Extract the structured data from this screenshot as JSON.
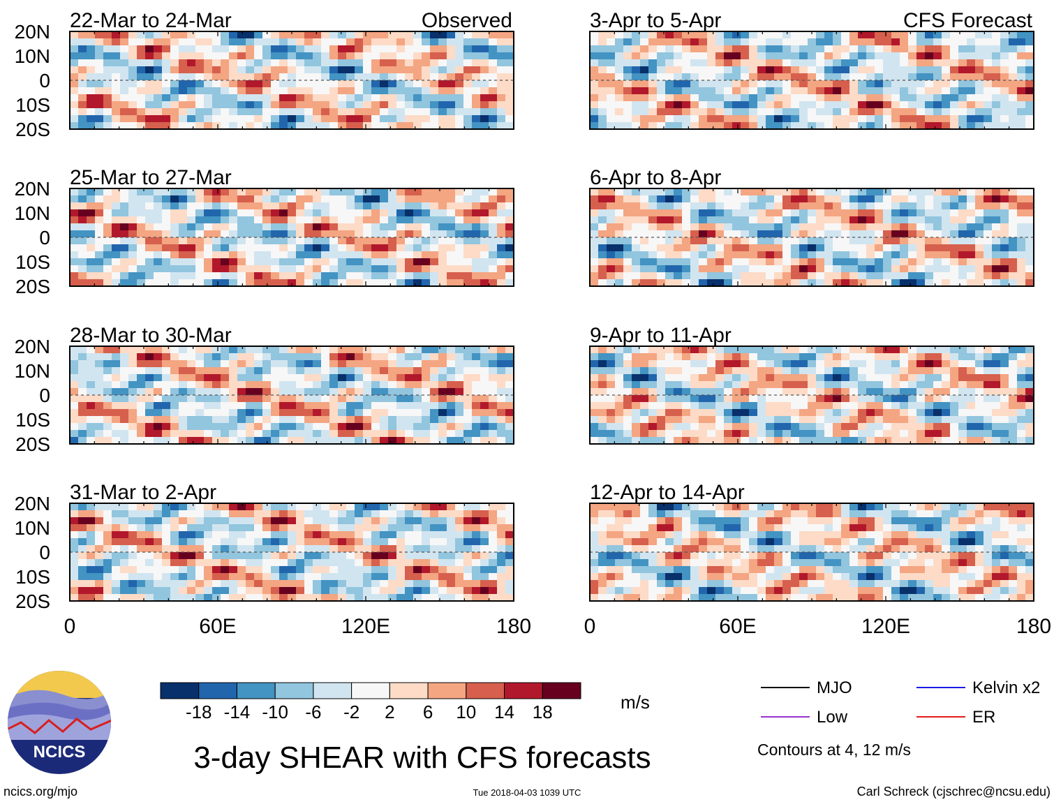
{
  "chart_data": {
    "type": "heatmap",
    "title": "3-day SHEAR with CFS forecasts",
    "units": "m/s",
    "columns": [
      {
        "header": "Observed",
        "panels": [
          "22-Mar to 24-Mar",
          "25-Mar to 27-Mar",
          "28-Mar to 30-Mar",
          "31-Mar to 2-Apr"
        ]
      },
      {
        "header": "CFS Forecast",
        "panels": [
          "3-Apr to 5-Apr",
          "6-Apr to 8-Apr",
          "9-Apr to 11-Apr",
          "12-Apr to 14-Apr"
        ]
      }
    ],
    "x_ticks": [
      "0",
      "60E",
      "120E",
      "180"
    ],
    "x_values": [
      0,
      60,
      120,
      180
    ],
    "xlim": [
      0,
      180
    ],
    "y_ticks": [
      "20N",
      "10N",
      "0",
      "10S",
      "20S"
    ],
    "y_values": [
      20,
      10,
      0,
      -10,
      -20
    ],
    "ylim": [
      -20,
      20
    ],
    "colorbar": {
      "labels": [
        "-18",
        "-14",
        "-10",
        "-6",
        "-2",
        "2",
        "6",
        "10",
        "14",
        "18"
      ],
      "colors": [
        "#08306b",
        "#2166ac",
        "#4393c3",
        "#92c5de",
        "#d1e5f0",
        "#f7f7f7",
        "#fddbc7",
        "#f4a582",
        "#d6604d",
        "#b2182b",
        "#67001f"
      ]
    },
    "legend": [
      {
        "label": "MJO",
        "color": "#000000"
      },
      {
        "label": "Kelvin x2",
        "color": "#1a1ae6"
      },
      {
        "label": "Low",
        "color": "#9932cc"
      },
      {
        "label": "ER",
        "color": "#e61a1a"
      }
    ],
    "contour_note": "Contours at 4, 12 m/s"
  },
  "footer": {
    "left": "ncics.org/mjo",
    "center": "Tue 2018-04-03 1039 UTC",
    "right": "Carl Schreck (cjschrec@ncsu.edu)"
  },
  "logo": {
    "text": "NCICS"
  }
}
